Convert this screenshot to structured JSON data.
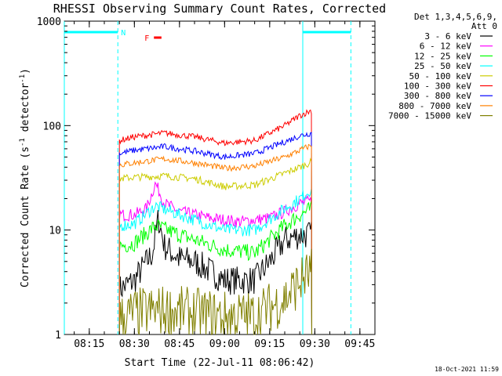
{
  "chart_data": {
    "type": "line",
    "title": "RHESSI Observing Summary Count Rates, Corrected",
    "xlabel": "Start Time (22-Jul-11 08:06:42)",
    "ylabel_parts": [
      "Corrected Count Rate (s",
      "-1",
      " detector",
      "-1",
      ")"
    ],
    "yscale": "log",
    "ylim": [
      1,
      1000
    ],
    "xlim": [
      "08:06:42",
      "09:50:00"
    ],
    "x_ticks": [
      "08:15",
      "08:30",
      "08:45",
      "09:00",
      "09:15",
      "09:30",
      "09:45"
    ],
    "y_ticks": [
      "1",
      "10",
      "100",
      "1000"
    ],
    "legend_header": [
      "Det 1,3,4,5,6,9,",
      "Att 0"
    ],
    "series": [
      {
        "name": "3 - 6 keV",
        "color": "#000000",
        "x": [
          "08:25",
          "08:30",
          "08:36",
          "08:38",
          "08:40",
          "08:45",
          "08:50",
          "09:00",
          "09:10",
          "09:15",
          "09:20",
          "09:25",
          "09:29"
        ],
        "y": [
          2.7,
          3.3,
          6,
          13,
          7,
          5.3,
          5,
          3.3,
          3.3,
          5,
          8,
          9,
          9
        ]
      },
      {
        "name": "6 - 12 keV",
        "color": "#ff00ff",
        "x": [
          "08:25",
          "08:30",
          "08:34",
          "08:37",
          "08:40",
          "08:45",
          "08:55",
          "09:05",
          "09:15",
          "09:20",
          "09:25",
          "09:29"
        ],
        "y": [
          14,
          14,
          16,
          28,
          18,
          15,
          13,
          12,
          13,
          15,
          18,
          19
        ]
      },
      {
        "name": "12 - 25 keV",
        "color": "#00ff00",
        "x": [
          "08:25",
          "08:30",
          "08:37",
          "08:45",
          "09:00",
          "09:10",
          "09:20",
          "09:25",
          "09:29"
        ],
        "y": [
          7,
          7.5,
          11,
          9,
          6.5,
          6,
          11,
          14,
          16
        ]
      },
      {
        "name": "25 - 50 keV",
        "color": "#00ffff",
        "x": [
          "08:25",
          "08:30",
          "08:37",
          "08:45",
          "09:00",
          "09:10",
          "09:20",
          "09:25",
          "09:29"
        ],
        "y": [
          11,
          11.5,
          17,
          14,
          10,
          10,
          16,
          20,
          25
        ]
      },
      {
        "name": "50 - 100 keV",
        "color": "#cccc00",
        "x": [
          "08:25",
          "08:30",
          "08:40",
          "08:50",
          "09:00",
          "09:10",
          "09:20",
          "09:25",
          "09:29"
        ],
        "y": [
          31,
          32,
          33,
          31,
          26,
          27,
          35,
          40,
          45
        ]
      },
      {
        "name": "100 - 300 keV",
        "color": "#ff0000",
        "x": [
          "08:25",
          "08:30",
          "08:40",
          "08:50",
          "09:00",
          "09:10",
          "09:20",
          "09:25",
          "09:29"
        ],
        "y": [
          72,
          78,
          85,
          78,
          68,
          72,
          100,
          125,
          140
        ]
      },
      {
        "name": "300 - 800 keV",
        "color": "#0000ff",
        "x": [
          "08:25",
          "08:30",
          "08:40",
          "08:50",
          "09:00",
          "09:10",
          "09:20",
          "09:25",
          "09:29"
        ],
        "y": [
          54,
          58,
          63,
          57,
          50,
          54,
          70,
          80,
          85
        ]
      },
      {
        "name": "800 - 7000 keV",
        "color": "#ff8000",
        "x": [
          "08:25",
          "08:30",
          "08:40",
          "08:50",
          "09:00",
          "09:10",
          "09:20",
          "09:25",
          "09:29"
        ],
        "y": [
          42,
          44,
          48,
          44,
          39,
          41,
          50,
          58,
          65
        ]
      },
      {
        "name": "7000 - 15000 keV",
        "color": "#808000",
        "x": [
          "08:25",
          "08:30",
          "08:40",
          "08:50",
          "09:00",
          "09:10",
          "09:20",
          "09:25",
          "09:29"
        ],
        "y": [
          1.4,
          1.6,
          1.7,
          1.6,
          1.5,
          1.5,
          2.2,
          3.2,
          4
        ]
      }
    ],
    "flags": [
      {
        "label": "N",
        "color": "#00ffff",
        "spans": [
          [
            "08:06:42",
            "08:24:30"
          ],
          [
            "09:26:00",
            "09:42:00"
          ]
        ]
      },
      {
        "label": "F",
        "color": "#ff0000",
        "spans": [
          [
            "08:36:30",
            "08:39:00"
          ]
        ]
      }
    ],
    "night_boundaries": [
      "08:24:30",
      "09:42:00"
    ],
    "day_boundaries": [
      "08:06:42",
      "09:26:00"
    ],
    "timestamp": "18-Oct-2021 11:59"
  }
}
